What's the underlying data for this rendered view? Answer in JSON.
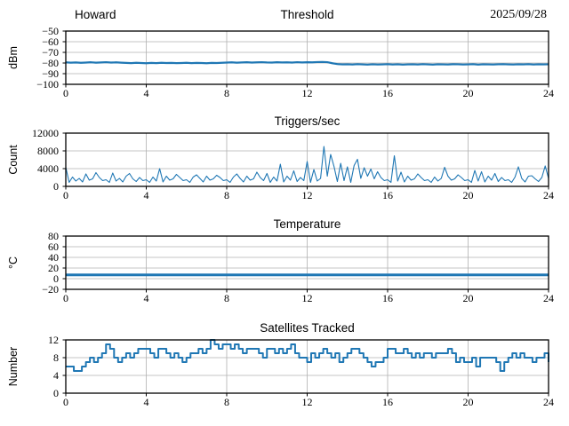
{
  "style": {
    "background_color": "#ffffff",
    "line_color": "#1f77b4",
    "grid_color": "#b0b0b0",
    "axis_color": "#000000",
    "text_color": "#000000"
  },
  "header": {
    "left_title": "Howard",
    "center_title": "Threshold",
    "right_title": "2025/09/28"
  },
  "chart_data": [
    {
      "type": "line",
      "title": "Threshold",
      "title_left": "Howard",
      "title_right": "2025/09/28",
      "ylabel": "dBm",
      "xlabel": "",
      "xlim": [
        0,
        24
      ],
      "ylim": [
        -100,
        -50
      ],
      "xticks": [
        0,
        4,
        8,
        12,
        16,
        20,
        24
      ],
      "yticks": [
        -100,
        -90,
        -80,
        -70,
        -60,
        -50
      ],
      "grid": true,
      "legend": "none",
      "series": [
        {
          "name": "threshold-dbm",
          "width": 2.2,
          "x_start": 0,
          "x_end": 24,
          "y": [
            -79.4,
            -79.7,
            -79.5,
            -79.8,
            -79.6,
            -79.3,
            -79.7,
            -79.5,
            -79.2,
            -79.6,
            -79.4,
            -79.7,
            -79.9,
            -80.1,
            -79.8,
            -80.0,
            -80.2,
            -79.9,
            -80.1,
            -79.8,
            -80.0,
            -79.9,
            -80.1,
            -80.0,
            -79.8,
            -80.1,
            -79.9,
            -80.0,
            -80.2,
            -79.9,
            -80.0,
            -79.8,
            -79.6,
            -79.4,
            -79.7,
            -79.5,
            -79.3,
            -79.6,
            -79.4,
            -79.2,
            -79.5,
            -79.6,
            -79.3,
            -79.5,
            -79.4,
            -79.6,
            -79.2,
            -79.5,
            -79.3,
            -79.4,
            -79.1,
            -79.0,
            -79.2,
            -80.2,
            -81.0,
            -81.3,
            -81.2,
            -81.4,
            -81.1,
            -81.3,
            -81.5,
            -81.2,
            -81.4,
            -81.3,
            -81.1,
            -81.4,
            -81.2,
            -81.5,
            -81.3,
            -81.2,
            -81.4,
            -81.1,
            -81.3,
            -81.5,
            -81.2,
            -81.3,
            -81.4,
            -81.1,
            -81.2,
            -81.4,
            -81.3,
            -81.1,
            -81.5,
            -81.2,
            -81.3,
            -81.4,
            -81.2,
            -81.1,
            -81.3,
            -81.4,
            -81.2,
            -81.3,
            -81.1,
            -81.4,
            -81.2,
            -81.3,
            -81.2
          ]
        }
      ]
    },
    {
      "type": "line",
      "title": "Triggers/sec",
      "ylabel": "Count",
      "xlabel": "",
      "xlim": [
        0,
        24
      ],
      "ylim": [
        0,
        12000
      ],
      "xticks": [
        0,
        4,
        8,
        12,
        16,
        20,
        24
      ],
      "yticks": [
        0,
        4000,
        8000,
        12000
      ],
      "grid": true,
      "legend": "none",
      "series": [
        {
          "name": "triggers-per-sec",
          "width": 1.1,
          "x_start": 0,
          "x_end": 24,
          "y": [
            4300,
            900,
            2100,
            1200,
            1800,
            1000,
            2800,
            1400,
            1700,
            3100,
            2000,
            1300,
            1500,
            900,
            3000,
            1200,
            1800,
            1000,
            2300,
            2900,
            1700,
            1100,
            2000,
            1300,
            1500,
            900,
            2100,
            1200,
            4000,
            1000,
            2300,
            1400,
            1700,
            2700,
            2000,
            1300,
            1500,
            900,
            2100,
            2600,
            1800,
            1000,
            2300,
            1400,
            1700,
            2500,
            2000,
            1300,
            1500,
            900,
            2100,
            2800,
            1800,
            1000,
            2300,
            1400,
            1700,
            3200,
            2000,
            1300,
            2900,
            900,
            2100,
            1200,
            5000,
            1000,
            2300,
            1400,
            3500,
            1100,
            2000,
            1300,
            5600,
            900,
            3800,
            1200,
            1800,
            9000,
            2300,
            7200,
            4500,
            1100,
            5200,
            1300,
            4400,
            900,
            4700,
            6100,
            1800,
            4200,
            2300,
            3900,
            1700,
            3300,
            2000,
            1300,
            1500,
            900,
            6900,
            1200,
            3200,
            1000,
            2300,
            1400,
            1700,
            2800,
            2000,
            1300,
            1500,
            900,
            2100,
            1200,
            1800,
            4300,
            2300,
            1400,
            1700,
            2600,
            2000,
            1300,
            1500,
            900,
            3600,
            1200,
            3300,
            1000,
            2300,
            1400,
            2900,
            1100,
            2000,
            1300,
            1500,
            900,
            2100,
            4400,
            1800,
            1000,
            2300,
            2400,
            1700,
            1100,
            2000,
            4600,
            1800
          ]
        }
      ]
    },
    {
      "type": "line",
      "title": "Temperature",
      "ylabel": "°C",
      "xlabel": "",
      "xlim": [
        0,
        24
      ],
      "ylim": [
        -20,
        80
      ],
      "xticks": [
        0,
        4,
        8,
        12,
        16,
        20,
        24
      ],
      "yticks": [
        -20,
        0,
        20,
        40,
        60,
        80
      ],
      "grid": true,
      "legend": "none",
      "series": [
        {
          "name": "temperature-c",
          "width": 3,
          "x": [
            0,
            24
          ],
          "y": [
            7,
            7
          ]
        }
      ]
    },
    {
      "type": "line",
      "title": "Satellites Tracked",
      "ylabel": "Number",
      "xlabel": "",
      "xlim": [
        0,
        24
      ],
      "ylim": [
        0,
        12
      ],
      "xticks": [
        0,
        4,
        8,
        12,
        16,
        20,
        24
      ],
      "yticks": [
        0,
        4,
        8,
        12
      ],
      "grid": true,
      "legend": "none",
      "series": [
        {
          "name": "satellites-tracked",
          "width": 2,
          "step": true,
          "x_start": 0,
          "x_end": 24,
          "y": [
            6,
            6,
            5,
            5,
            6,
            7,
            8,
            7,
            8,
            9,
            11,
            10,
            8,
            7,
            8,
            9,
            8,
            9,
            10,
            10,
            10,
            9,
            8,
            10,
            10,
            9,
            8,
            9,
            8,
            7,
            8,
            9,
            9,
            10,
            9,
            10,
            12,
            11,
            10,
            11,
            11,
            10,
            11,
            10,
            9,
            10,
            10,
            10,
            9,
            8,
            10,
            10,
            9,
            10,
            9,
            10,
            11,
            9,
            8,
            8,
            7,
            9,
            8,
            9,
            10,
            9,
            8,
            9,
            7,
            8,
            9,
            10,
            10,
            9,
            8,
            7,
            6,
            7,
            7,
            8,
            10,
            10,
            9,
            9,
            10,
            9,
            8,
            9,
            8,
            9,
            9,
            8,
            9,
            9,
            9,
            10,
            9,
            7,
            8,
            7,
            7,
            8,
            6,
            8,
            8,
            8,
            8,
            7,
            5,
            7,
            8,
            9,
            8,
            9,
            8,
            8,
            7,
            8,
            8,
            9,
            7
          ]
        }
      ]
    }
  ]
}
